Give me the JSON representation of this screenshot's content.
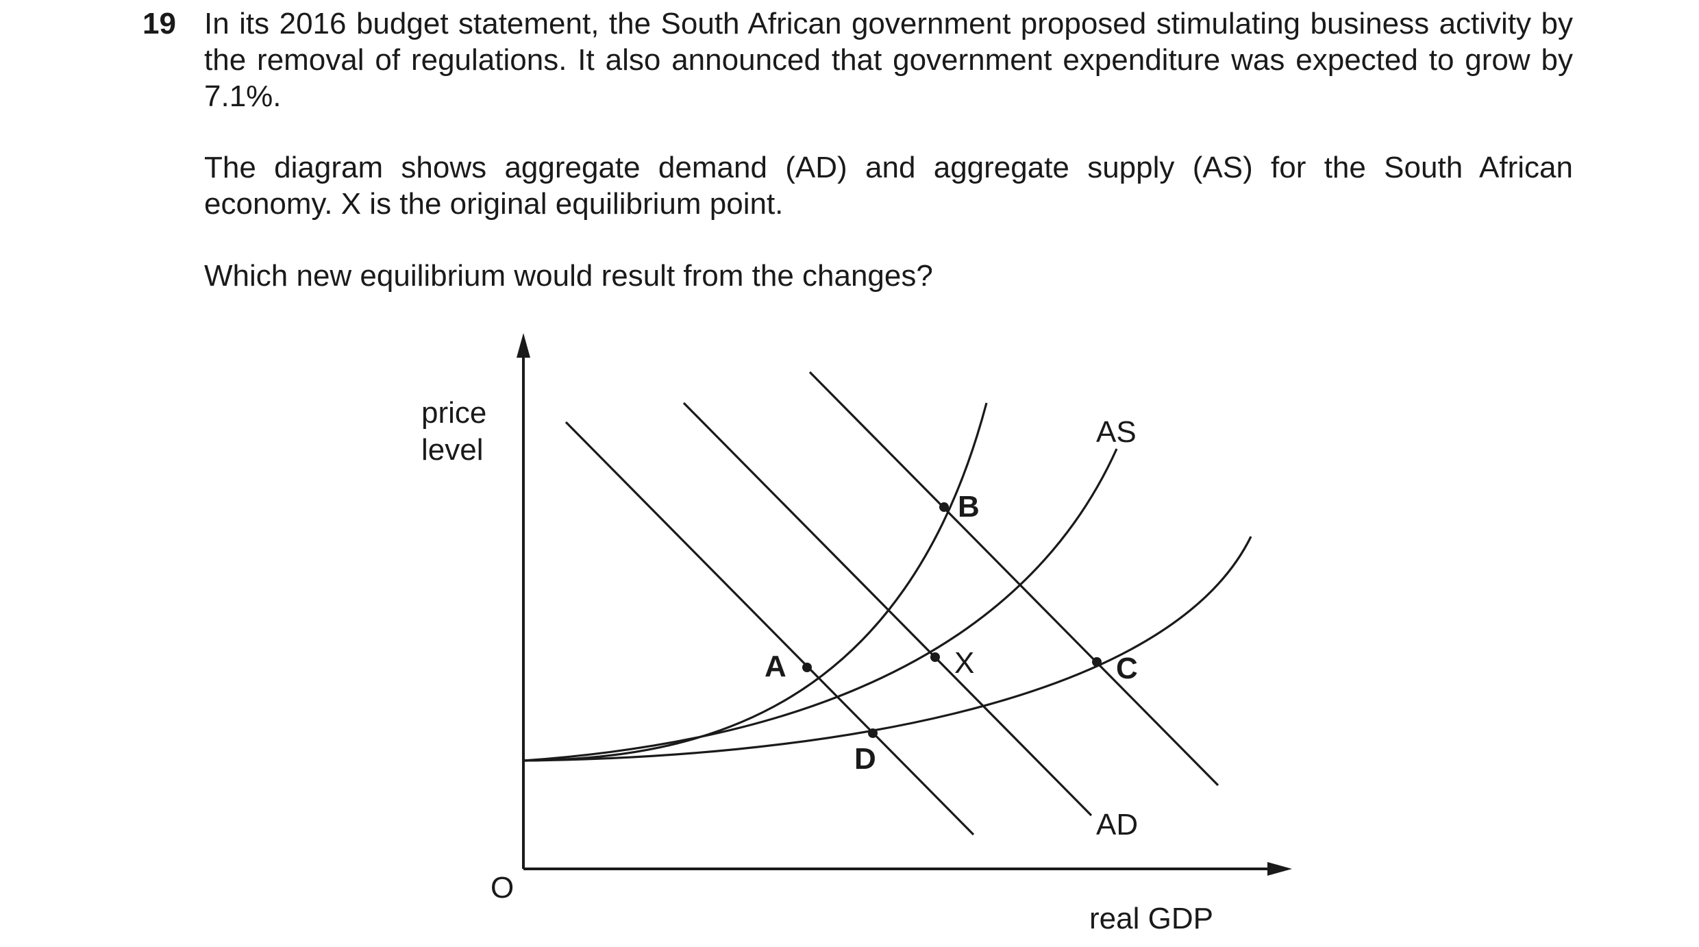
{
  "question": {
    "number": "19",
    "paragraph1": "In its 2016 budget statement, the South African government proposed stimulating business activity by the removal of regulations. It also announced that government expenditure was expected to grow by 7.1%.",
    "paragraph2": "The diagram shows aggregate demand (AD) and aggregate supply (AS) for the South African economy. X is the original equilibrium point.",
    "paragraph3": "Which new equilibrium would result from the changes?"
  },
  "diagram": {
    "y_axis_label_line1": "price",
    "y_axis_label_line2": "level",
    "x_axis_label": "real GDP",
    "origin_label": "O",
    "as_label": "AS",
    "ad_label": "AD",
    "points": {
      "a": "A",
      "b": "B",
      "c": "C",
      "d": "D",
      "x": "X"
    }
  }
}
